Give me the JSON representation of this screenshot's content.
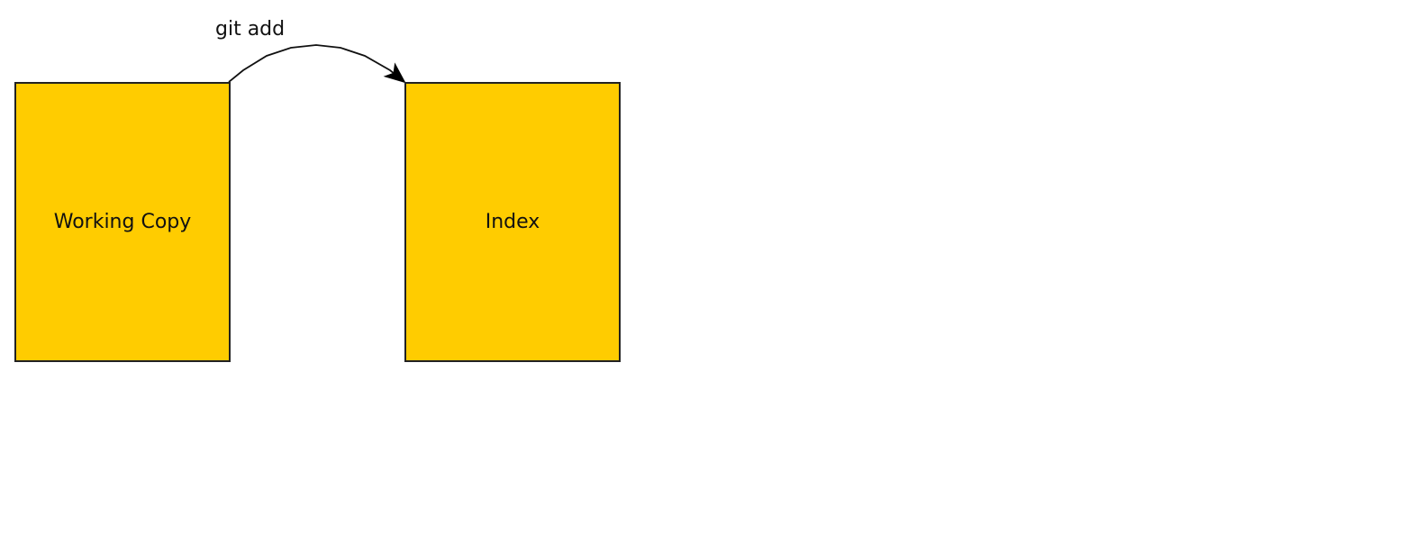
{
  "nodes": {
    "working_copy": {
      "label": "Working Copy",
      "fill": "#FFCC00"
    },
    "index": {
      "label": "Index",
      "fill": "#FFCC00"
    }
  },
  "edges": {
    "git_add": {
      "label": "git add",
      "from": "Working Copy",
      "to": "Index"
    }
  },
  "colors": {
    "node_fill": "#FFCC00",
    "stroke": "#222222",
    "text": "#111111"
  }
}
